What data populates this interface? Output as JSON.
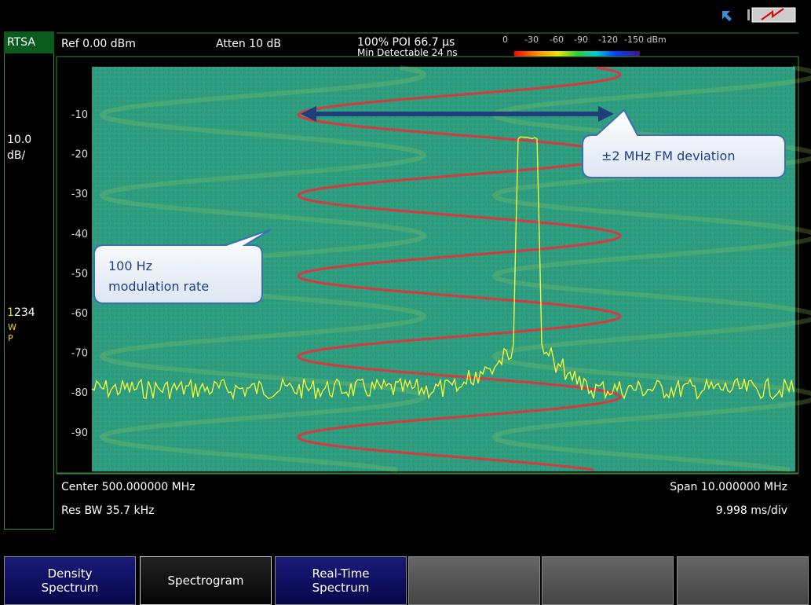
{
  "left_panel": {
    "mode": "RTSA",
    "scale_value": "10.0",
    "scale_unit": "dB/",
    "traces": "1234",
    "trace_type": "W",
    "detector": "P"
  },
  "header": {
    "ref": "Ref 0.00 dBm",
    "atten": "Atten 10 dB",
    "poi": "100% POI 66.7 µs",
    "min_detectable": "Min Detectable 24 ns",
    "color_scale": [
      "0",
      "-30",
      "-60",
      "-90",
      "-120",
      "-150 dBm"
    ]
  },
  "plot": {
    "y_labels": [
      "-10",
      "-20",
      "-30",
      "-40",
      "-50",
      "-60",
      "-70",
      "-80",
      "-90"
    ],
    "callouts": [
      {
        "lines": [
          "±2 MHz FM deviation"
        ]
      },
      {
        "lines": [
          "100 Hz",
          "modulation rate"
        ]
      }
    ]
  },
  "footer": {
    "center": "Center 500.000000 MHz",
    "res_bw": "Res BW 35.7 kHz",
    "span": "Span 10.000000 MHz",
    "sweep": "9.998 ms/div"
  },
  "softkeys": [
    {
      "lines": [
        "Density",
        "Spectrum"
      ]
    },
    {
      "lines": [
        "Spectrogram"
      ]
    },
    {
      "lines": [
        "Real-Time",
        "Spectrum"
      ]
    }
  ]
}
